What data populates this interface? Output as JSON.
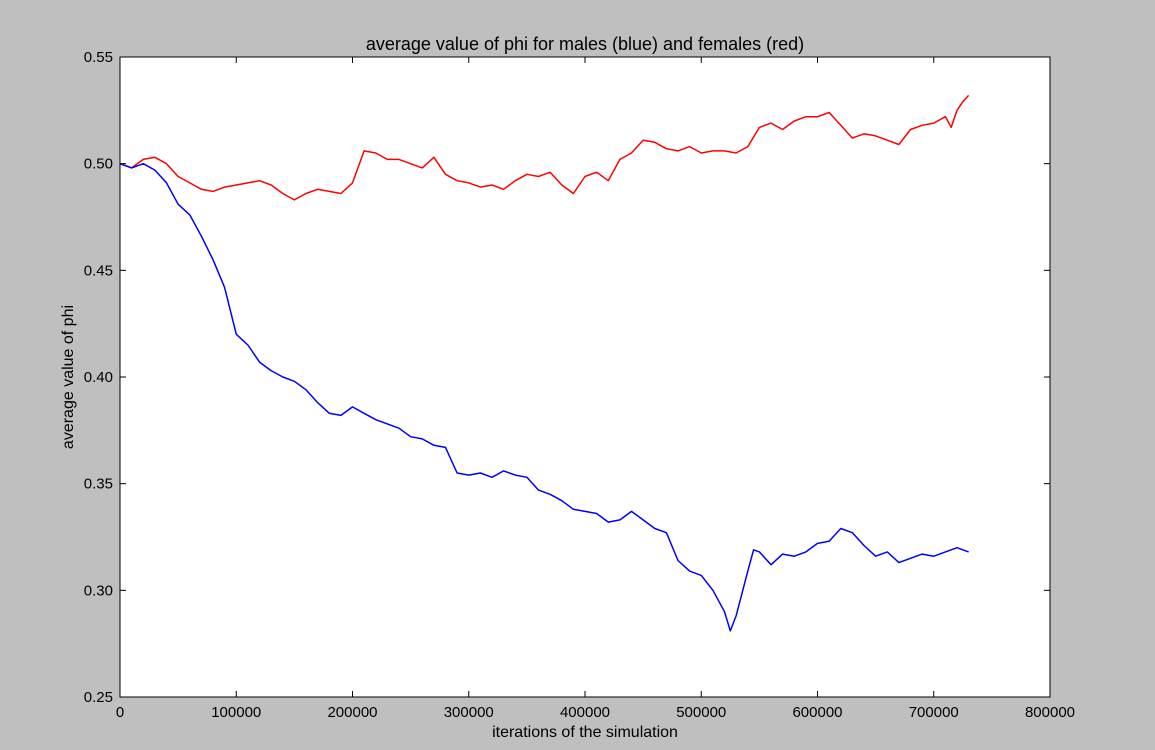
{
  "chart_data": {
    "type": "line",
    "title": "average value of phi for males (blue) and females (red)",
    "xlabel": "iterations of the simulation",
    "ylabel": "average value of phi",
    "xlim": [
      0,
      800000
    ],
    "ylim": [
      0.25,
      0.55
    ],
    "xticks": [
      0,
      100000,
      200000,
      300000,
      400000,
      500000,
      600000,
      700000,
      800000
    ],
    "xtick_labels": [
      "0",
      "100000",
      "200000",
      "300000",
      "400000",
      "500000",
      "600000",
      "700000",
      "800000"
    ],
    "yticks": [
      0.25,
      0.3,
      0.35,
      0.4,
      0.45,
      0.5,
      0.55
    ],
    "ytick_labels": [
      "0.25",
      "0.30",
      "0.35",
      "0.40",
      "0.45",
      "0.50",
      "0.55"
    ],
    "grid": false,
    "legend": "none",
    "colors": {
      "background": "#bfbfbf",
      "axes": "#ffffff",
      "males": "#0000ff",
      "females": "#ff0000"
    },
    "series": [
      {
        "color": "#ff0000",
        "points": [
          [
            0,
            0.5
          ],
          [
            10000,
            0.498
          ],
          [
            20000,
            0.502
          ],
          [
            30000,
            0.503
          ],
          [
            40000,
            0.5
          ],
          [
            50000,
            0.494
          ],
          [
            60000,
            0.491
          ],
          [
            70000,
            0.488
          ],
          [
            80000,
            0.487
          ],
          [
            90000,
            0.489
          ],
          [
            100000,
            0.49
          ],
          [
            110000,
            0.491
          ],
          [
            120000,
            0.492
          ],
          [
            130000,
            0.49
          ],
          [
            140000,
            0.486
          ],
          [
            150000,
            0.483
          ],
          [
            160000,
            0.486
          ],
          [
            170000,
            0.488
          ],
          [
            180000,
            0.487
          ],
          [
            190000,
            0.486
          ],
          [
            200000,
            0.491
          ],
          [
            210000,
            0.506
          ],
          [
            220000,
            0.505
          ],
          [
            230000,
            0.502
          ],
          [
            240000,
            0.502
          ],
          [
            250000,
            0.5
          ],
          [
            260000,
            0.498
          ],
          [
            270000,
            0.503
          ],
          [
            280000,
            0.495
          ],
          [
            290000,
            0.492
          ],
          [
            300000,
            0.491
          ],
          [
            310000,
            0.489
          ],
          [
            320000,
            0.49
          ],
          [
            330000,
            0.488
          ],
          [
            340000,
            0.492
          ],
          [
            350000,
            0.495
          ],
          [
            360000,
            0.494
          ],
          [
            370000,
            0.496
          ],
          [
            380000,
            0.49
          ],
          [
            390000,
            0.486
          ],
          [
            400000,
            0.494
          ],
          [
            410000,
            0.496
          ],
          [
            420000,
            0.492
          ],
          [
            430000,
            0.502
          ],
          [
            440000,
            0.505
          ],
          [
            450000,
            0.511
          ],
          [
            460000,
            0.51
          ],
          [
            470000,
            0.507
          ],
          [
            480000,
            0.506
          ],
          [
            490000,
            0.508
          ],
          [
            500000,
            0.505
          ],
          [
            510000,
            0.506
          ],
          [
            520000,
            0.506
          ],
          [
            530000,
            0.505
          ],
          [
            540000,
            0.508
          ],
          [
            550000,
            0.517
          ],
          [
            560000,
            0.519
          ],
          [
            570000,
            0.516
          ],
          [
            580000,
            0.52
          ],
          [
            590000,
            0.522
          ],
          [
            600000,
            0.522
          ],
          [
            610000,
            0.524
          ],
          [
            620000,
            0.518
          ],
          [
            630000,
            0.512
          ],
          [
            640000,
            0.514
          ],
          [
            650000,
            0.513
          ],
          [
            660000,
            0.511
          ],
          [
            670000,
            0.509
          ],
          [
            680000,
            0.516
          ],
          [
            690000,
            0.518
          ],
          [
            700000,
            0.519
          ],
          [
            710000,
            0.522
          ],
          [
            715000,
            0.517
          ],
          [
            720000,
            0.525
          ],
          [
            725000,
            0.529
          ],
          [
            730000,
            0.532
          ]
        ]
      },
      {
        "color": "#0000ff",
        "points": [
          [
            0,
            0.5
          ],
          [
            10000,
            0.498
          ],
          [
            20000,
            0.5
          ],
          [
            30000,
            0.497
          ],
          [
            40000,
            0.491
          ],
          [
            50000,
            0.481
          ],
          [
            60000,
            0.476
          ],
          [
            70000,
            0.466
          ],
          [
            80000,
            0.455
          ],
          [
            90000,
            0.442
          ],
          [
            100000,
            0.42
          ],
          [
            110000,
            0.415
          ],
          [
            120000,
            0.407
          ],
          [
            130000,
            0.403
          ],
          [
            140000,
            0.4
          ],
          [
            150000,
            0.398
          ],
          [
            160000,
            0.394
          ],
          [
            170000,
            0.388
          ],
          [
            180000,
            0.383
          ],
          [
            190000,
            0.382
          ],
          [
            200000,
            0.386
          ],
          [
            210000,
            0.383
          ],
          [
            220000,
            0.38
          ],
          [
            230000,
            0.378
          ],
          [
            240000,
            0.376
          ],
          [
            250000,
            0.372
          ],
          [
            260000,
            0.371
          ],
          [
            270000,
            0.368
          ],
          [
            280000,
            0.367
          ],
          [
            290000,
            0.355
          ],
          [
            300000,
            0.354
          ],
          [
            310000,
            0.355
          ],
          [
            320000,
            0.353
          ],
          [
            330000,
            0.356
          ],
          [
            340000,
            0.354
          ],
          [
            350000,
            0.353
          ],
          [
            360000,
            0.347
          ],
          [
            370000,
            0.345
          ],
          [
            380000,
            0.342
          ],
          [
            390000,
            0.338
          ],
          [
            400000,
            0.337
          ],
          [
            410000,
            0.336
          ],
          [
            420000,
            0.332
          ],
          [
            430000,
            0.333
          ],
          [
            440000,
            0.337
          ],
          [
            450000,
            0.333
          ],
          [
            460000,
            0.329
          ],
          [
            470000,
            0.327
          ],
          [
            480000,
            0.314
          ],
          [
            490000,
            0.309
          ],
          [
            500000,
            0.307
          ],
          [
            510000,
            0.3
          ],
          [
            520000,
            0.29
          ],
          [
            525000,
            0.281
          ],
          [
            530000,
            0.288
          ],
          [
            540000,
            0.309
          ],
          [
            545000,
            0.319
          ],
          [
            550000,
            0.318
          ],
          [
            560000,
            0.312
          ],
          [
            570000,
            0.317
          ],
          [
            580000,
            0.316
          ],
          [
            590000,
            0.318
          ],
          [
            600000,
            0.322
          ],
          [
            610000,
            0.323
          ],
          [
            620000,
            0.329
          ],
          [
            630000,
            0.327
          ],
          [
            640000,
            0.321
          ],
          [
            650000,
            0.316
          ],
          [
            660000,
            0.318
          ],
          [
            670000,
            0.313
          ],
          [
            680000,
            0.315
          ],
          [
            690000,
            0.317
          ],
          [
            700000,
            0.316
          ],
          [
            710000,
            0.318
          ],
          [
            720000,
            0.32
          ],
          [
            730000,
            0.318
          ]
        ]
      }
    ]
  }
}
